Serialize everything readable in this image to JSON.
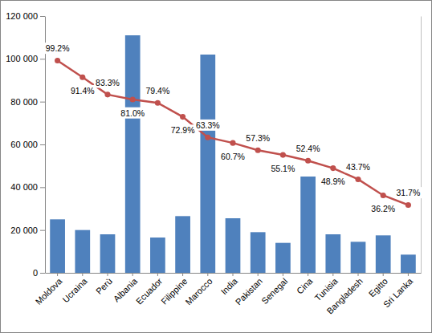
{
  "chart_data": {
    "type": "bar",
    "categories": [
      "Moldova",
      "Ucraina",
      "Perù",
      "Albania",
      "Ecuador",
      "Filippine",
      "Marocco",
      "India",
      "Pakistan",
      "Senegal",
      "Cina",
      "Tunisia",
      "Bangladesh",
      "Egitto",
      "Sri Lanka"
    ],
    "series": [
      {
        "type": "bar",
        "color": "#4f81bd",
        "values": [
          25000,
          20000,
          18000,
          111000,
          16500,
          26500,
          102000,
          25500,
          19000,
          14000,
          45000,
          18000,
          14500,
          17500,
          8500
        ]
      },
      {
        "type": "line",
        "axis": "y2",
        "color": "#c0504d",
        "marker": "circle",
        "data_labels": true,
        "values": [
          99.2,
          91.4,
          83.3,
          81.0,
          79.4,
          72.9,
          63.3,
          60.7,
          57.3,
          55.1,
          52.4,
          48.9,
          43.7,
          36.2,
          31.7
        ],
        "value_labels": [
          "99.2%",
          "91.4%",
          "83.3%",
          "81.0%",
          "79.4%",
          "72.9%",
          "63.3%",
          "60.7%",
          "57.3%",
          "55.1%",
          "52.4%",
          "48.9%",
          "43.7%",
          "36.2%",
          "31.7%"
        ]
      }
    ],
    "ylim": [
      0,
      120000
    ],
    "yticks": [
      0,
      {
        "value": 20000,
        "label": "20 000"
      },
      {
        "value": 40000,
        "label": "40 000"
      },
      {
        "value": 60000,
        "label": "60 000"
      },
      {
        "value": 80000,
        "label": "80 000"
      },
      {
        "value": 100000,
        "label": "100 000"
      },
      {
        "value": 120000,
        "label": "120 000"
      }
    ],
    "y2lim": [
      0,
      120
    ],
    "grid": false
  }
}
